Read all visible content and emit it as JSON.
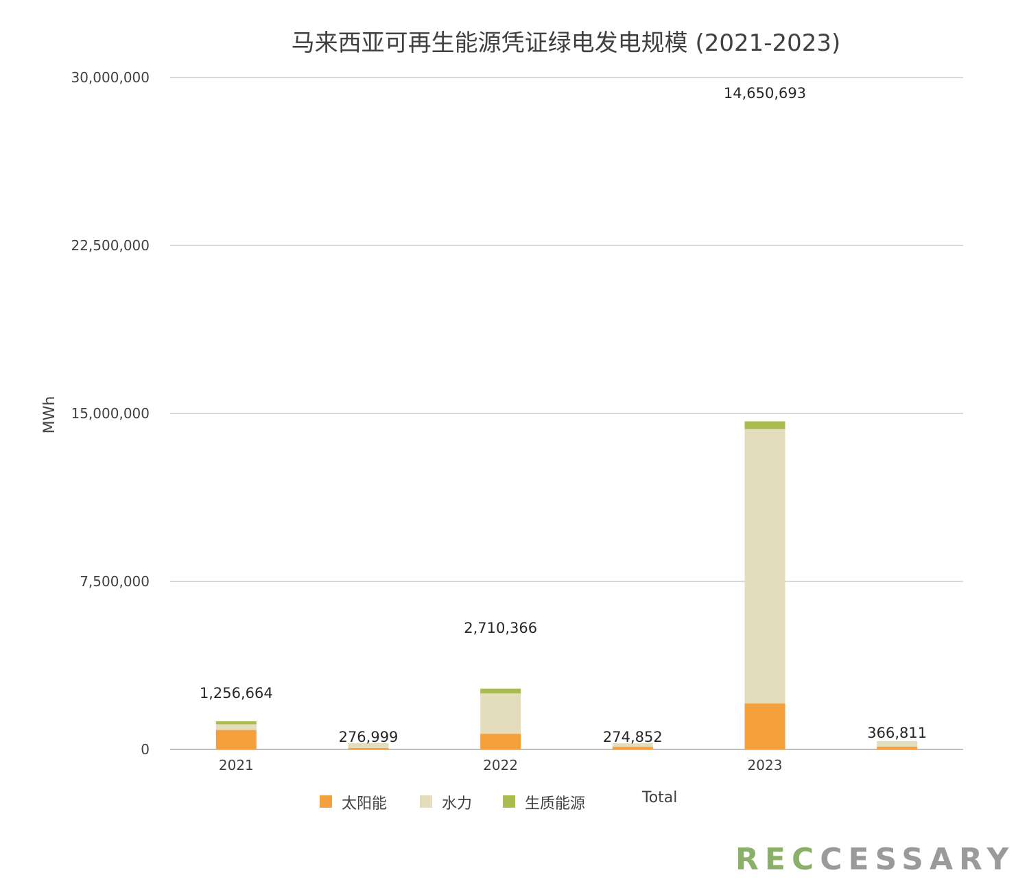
{
  "chart_data": {
    "type": "bar",
    "stacked": true,
    "title": "马来西亚可再生能源凭证绿电发电规模 (2021-2023)",
    "ylabel": "MWh",
    "ylim": [
      0,
      30000000
    ],
    "yticks": [
      0,
      7500000,
      15000000,
      22500000,
      30000000
    ],
    "ytick_labels": [
      "0",
      "7,500,000",
      "15,000,000",
      "22,500,000",
      "30,000,000"
    ],
    "grid": true,
    "legend_position": "bottom",
    "categories": [
      "2021",
      "",
      "2022",
      "",
      "2023",
      ""
    ],
    "series": [
      {
        "name": "太阳能",
        "color": "#f4a03d",
        "values": [
          870000,
          60000,
          700000,
          110000,
          2050000,
          120000
        ]
      },
      {
        "name": "水力",
        "color": "#e3ddbd",
        "values": [
          250000,
          217000,
          1800000,
          165000,
          12250000,
          247000
        ]
      },
      {
        "name": "生质能源",
        "color": "#a9bd4e",
        "values": [
          137000,
          0,
          210000,
          0,
          350000,
          0
        ]
      }
    ],
    "totals_legend": "Total",
    "data_labels": [
      "1,256,664",
      "276,999",
      "2,710,366",
      "274,852",
      "14,650,693",
      "366,811"
    ],
    "data_label_values": [
      1256664,
      276999,
      2710366,
      274852,
      14650693,
      366811
    ]
  },
  "logo": {
    "part1": "REC",
    "part2": "CESSARY"
  }
}
